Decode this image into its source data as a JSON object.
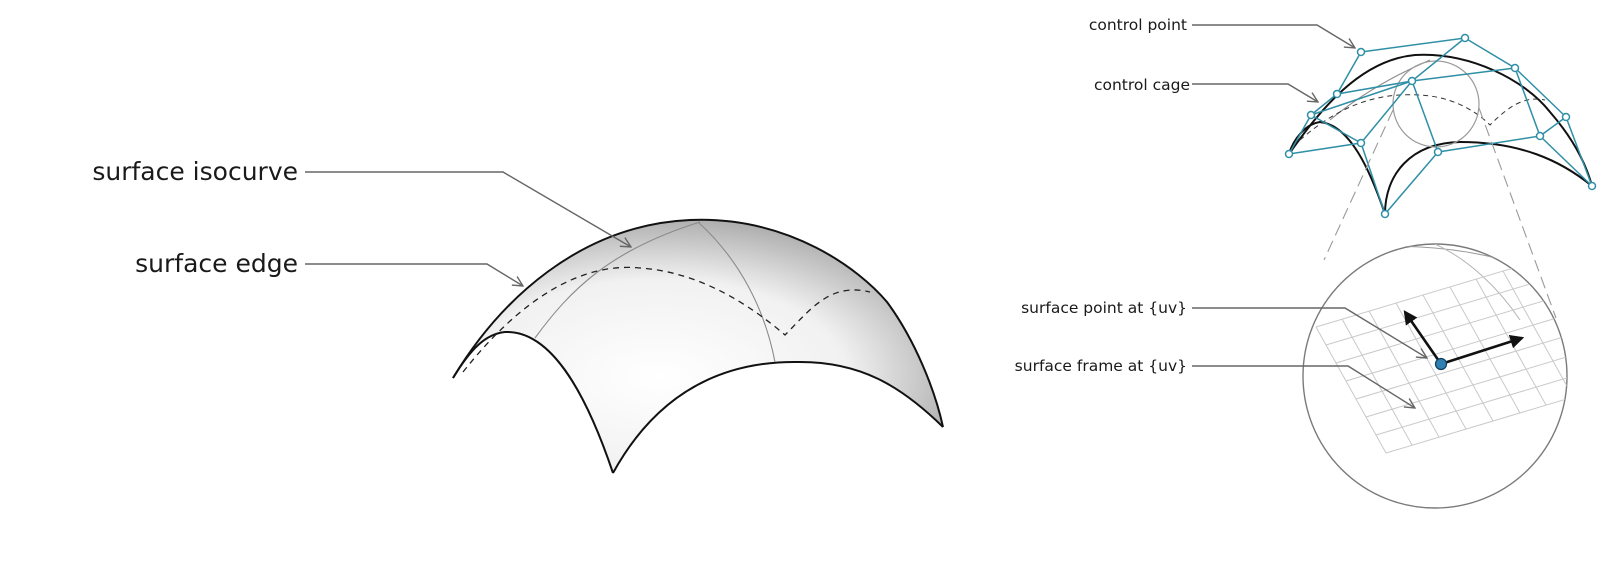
{
  "labels": {
    "surface_isocurve": "surface isocurve",
    "surface_edge": "surface edge",
    "control_point": "control point",
    "control_cage": "control cage",
    "surface_point": "surface point at {uv}",
    "surface_frame": "surface frame at {uv}"
  },
  "colors": {
    "cage": "#2f8fa6",
    "edge": "#111111",
    "leader": "#666666",
    "surface_point": "#2f7fb0"
  }
}
